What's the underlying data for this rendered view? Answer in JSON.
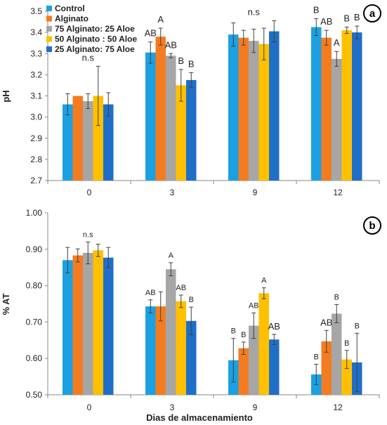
{
  "colors": {
    "series": [
      "#1ba1e2",
      "#f47c20",
      "#a6a6a6",
      "#ffc000",
      "#1f6fc8"
    ],
    "axis": "#888888",
    "errbar": "#404040"
  },
  "chart_data": [
    {
      "type": "bar",
      "panel_label": "a",
      "title": "",
      "xlabel": "",
      "ylabel": "pH",
      "ylim": [
        2.7,
        3.5
      ],
      "yticks": [
        "2.7",
        "2.8",
        "2.9",
        "3.0",
        "3.1",
        "3.2",
        "3.3",
        "3.4",
        "3.5"
      ],
      "grid": false,
      "legend_position": "top-left",
      "categories": [
        "0",
        "3",
        "9",
        "12"
      ],
      "series": [
        {
          "name": "Control",
          "values": [
            3.06,
            3.305,
            3.39,
            3.425
          ],
          "errors": [
            0.05,
            0.05,
            0.055,
            0.04
          ]
        },
        {
          "name": "Alginato",
          "values": [
            3.1,
            3.38,
            3.375,
            3.375
          ],
          "errors": [
            0.0,
            0.04,
            0.035,
            0.035
          ]
        },
        {
          "name": "75 Alginato: 25 Aloe",
          "values": [
            3.075,
            3.29,
            3.36,
            3.275
          ],
          "errors": [
            0.035,
            0.01,
            0.055,
            0.035
          ]
        },
        {
          "name": "50 Alginato : 50 Aloe",
          "values": [
            3.1,
            3.15,
            3.345,
            3.41
          ],
          "errors": [
            0.14,
            0.075,
            0.075,
            0.015
          ]
        },
        {
          "name": "25 Alginato: 75 Aloe",
          "values": [
            3.06,
            3.175,
            3.405,
            3.4
          ],
          "errors": [
            0.055,
            0.035,
            0.05,
            0.03
          ]
        }
      ],
      "annotations": [
        {
          "category": "0",
          "series": -1,
          "text": "n.s"
        },
        {
          "category": "3",
          "series": 0,
          "text": "AB"
        },
        {
          "category": "3",
          "series": 1,
          "text": "A"
        },
        {
          "category": "3",
          "series": 2,
          "text": "AB"
        },
        {
          "category": "3",
          "series": 3,
          "text": "B"
        },
        {
          "category": "3",
          "series": 4,
          "text": "B"
        },
        {
          "category": "9",
          "series": -1,
          "text": "n.s"
        },
        {
          "category": "12",
          "series": 0,
          "text": "B"
        },
        {
          "category": "12",
          "series": 1,
          "text": "AB"
        },
        {
          "category": "12",
          "series": 2,
          "text": "A"
        },
        {
          "category": "12",
          "series": 3,
          "text": "B"
        },
        {
          "category": "12",
          "series": 4,
          "text": "B"
        }
      ]
    },
    {
      "type": "bar",
      "panel_label": "b",
      "title": "",
      "xlabel": "Dias de almacenamiento",
      "ylabel": "% AT",
      "ylim": [
        0.5,
        1.0
      ],
      "yticks": [
        "0.50",
        "0.60",
        "0.70",
        "0.80",
        "0.90",
        "1.00"
      ],
      "grid": false,
      "categories": [
        "0",
        "3",
        "9",
        "12"
      ],
      "series": [
        {
          "values": [
            0.87,
            0.743,
            0.595,
            0.556
          ],
          "errors": [
            0.035,
            0.018,
            0.06,
            0.028
          ]
        },
        {
          "values": [
            0.883,
            0.743,
            0.628,
            0.647
          ],
          "errors": [
            0.018,
            0.04,
            0.017,
            0.03
          ]
        },
        {
          "values": [
            0.89,
            0.845,
            0.69,
            0.723
          ],
          "errors": [
            0.03,
            0.018,
            0.035,
            0.025
          ]
        },
        {
          "values": [
            0.897,
            0.757,
            0.779,
            0.597
          ],
          "errors": [
            0.017,
            0.017,
            0.015,
            0.025
          ]
        },
        {
          "values": [
            0.877,
            0.703,
            0.652,
            0.589
          ],
          "errors": [
            0.028,
            0.038,
            0.014,
            0.08
          ]
        }
      ],
      "annotations": [
        {
          "category": "0",
          "series": -1,
          "text": "n.s"
        },
        {
          "category": "3",
          "series": 0,
          "text": "AB"
        },
        {
          "category": "3",
          "series": 2,
          "text": "A"
        },
        {
          "category": "3",
          "series": 3,
          "text": "AB"
        },
        {
          "category": "3",
          "series": 4,
          "text": "B"
        },
        {
          "category": "9",
          "series": 0,
          "text": "B"
        },
        {
          "category": "9",
          "series": 1,
          "text": "B"
        },
        {
          "category": "9",
          "series": 2,
          "text": "AB"
        },
        {
          "category": "9",
          "series": 3,
          "text": "A"
        },
        {
          "category": "9",
          "series": 4,
          "text": "AB"
        },
        {
          "category": "12",
          "series": 0,
          "text": "B"
        },
        {
          "category": "12",
          "series": 1,
          "text": "AB"
        },
        {
          "category": "12",
          "series": 2,
          "text": "B"
        },
        {
          "category": "12",
          "series": 3,
          "text": "B"
        },
        {
          "category": "12",
          "series": 4,
          "text": "B"
        }
      ]
    }
  ]
}
